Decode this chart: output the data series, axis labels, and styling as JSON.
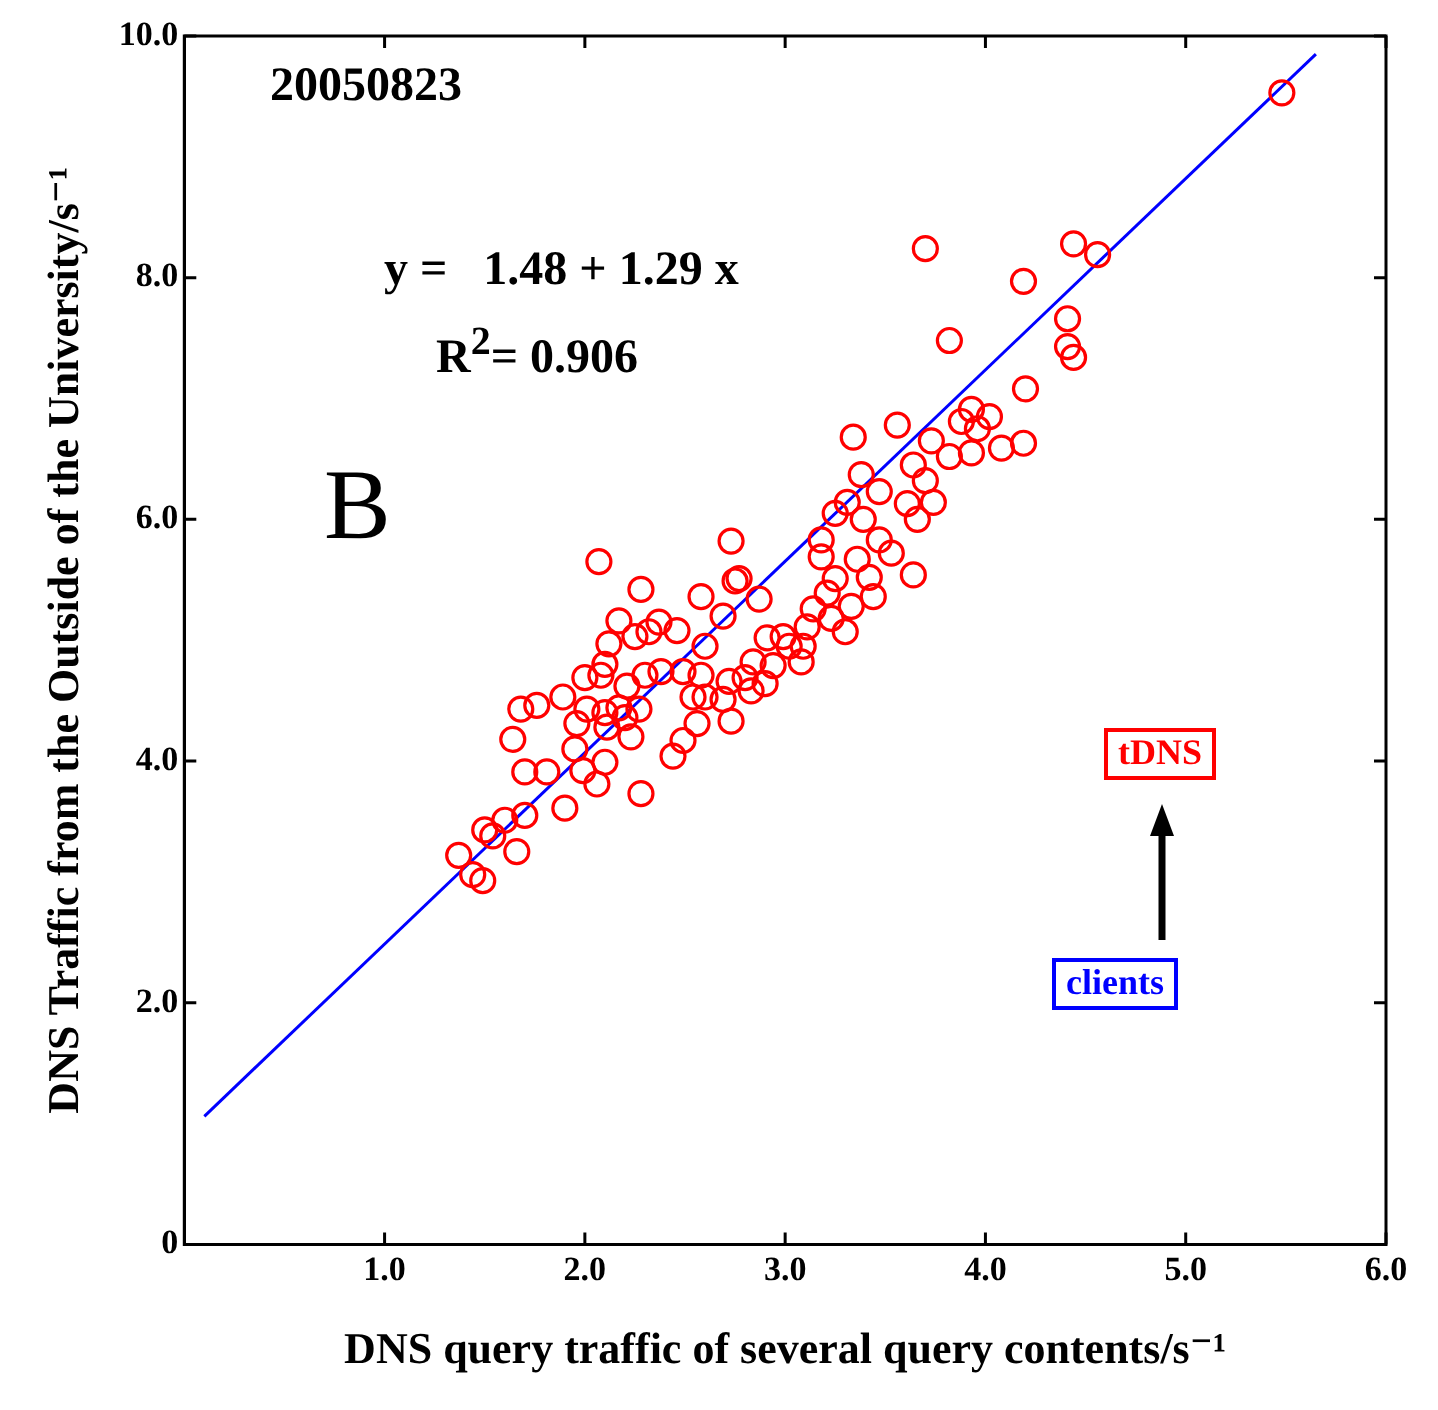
{
  "chart_data": {
    "type": "scatter",
    "xlabel": "DNS query traffic of several query contents/s⁻¹",
    "ylabel": "DNS Traffic from the Outside of the University/s⁻¹",
    "annotations": [
      "20050823",
      "y =   1.48 + 1.29 x",
      "R$^{2}$= 0.906",
      "B",
      "tDNS",
      "clients"
    ],
    "xlim": [
      0,
      6
    ],
    "ylim": [
      0,
      10
    ],
    "xticks": [
      {
        "value": 1,
        "label": "1.0"
      },
      {
        "value": 2,
        "label": "2.0"
      },
      {
        "value": 3,
        "label": "3.0"
      },
      {
        "value": 4,
        "label": "4.0"
      },
      {
        "value": 5,
        "label": "5.0"
      },
      {
        "value": 6,
        "label": "6.0"
      }
    ],
    "yticks": [
      0,
      {
        "value": 2,
        "label": "2.0"
      },
      {
        "value": 4,
        "label": "4.0"
      },
      {
        "value": 6,
        "label": "6.0"
      },
      {
        "value": 8,
        "label": "8.0"
      },
      {
        "value": 10,
        "label": "10.0"
      }
    ],
    "grid": false,
    "legend": false,
    "marker": "circle",
    "series": [
      {
        "color": "#ff0000",
        "x": [
          2.73,
          2.07,
          2.28,
          2.58,
          2.77,
          2.75,
          2.87,
          2.69,
          2.17,
          2.37,
          2.32,
          2.25,
          2.46,
          2.12,
          2.6,
          2.1,
          2.08,
          2.0,
          2.21,
          2.3,
          2.38,
          2.49,
          2.58,
          2.72,
          2.8,
          2.84,
          2.9,
          2.94,
          2.91,
          2.99,
          3.09,
          3.08,
          1.89,
          1.76,
          1.68,
          2.01,
          2.1,
          2.17,
          2.27,
          2.2,
          1.96,
          2.11,
          2.23,
          1.64,
          2.54,
          2.6,
          2.69,
          2.83,
          2.56,
          2.73,
          2.49,
          2.44,
          1.95,
          2.1,
          2.06,
          1.99,
          1.81,
          1.7,
          2.28,
          1.9,
          1.7,
          1.6,
          1.5,
          1.54,
          1.66,
          1.37,
          1.44,
          1.49,
          3.7,
          4.44,
          4.56,
          4.19,
          4.41,
          3.82,
          4.41,
          4.44,
          4.2,
          3.93,
          4.02,
          3.88,
          3.96,
          3.56,
          3.34,
          3.73,
          3.82,
          3.93,
          4.08,
          4.19,
          3.64,
          3.7,
          3.74,
          3.61,
          3.66,
          3.38,
          3.47,
          3.31,
          3.39,
          3.25,
          3.47,
          3.53,
          3.64,
          3.18,
          3.18,
          3.36,
          3.42,
          3.44,
          3.25,
          3.21,
          3.33,
          3.3,
          3.23,
          3.14,
          3.11,
          3.02,
          5.48
        ],
        "values": [
          5.82,
          5.65,
          5.42,
          5.36,
          5.51,
          5.49,
          5.34,
          5.2,
          5.16,
          5.15,
          5.07,
          5.03,
          5.08,
          4.97,
          4.95,
          4.8,
          4.71,
          4.69,
          4.62,
          4.71,
          4.74,
          4.74,
          4.71,
          4.66,
          4.69,
          4.82,
          4.64,
          4.79,
          5.02,
          5.03,
          4.95,
          4.82,
          4.53,
          4.46,
          4.43,
          4.43,
          4.4,
          4.44,
          4.43,
          4.36,
          4.31,
          4.28,
          4.2,
          4.18,
          4.53,
          4.53,
          4.51,
          4.58,
          4.31,
          4.33,
          4.17,
          4.04,
          4.1,
          3.99,
          3.81,
          3.92,
          3.91,
          3.91,
          3.73,
          3.61,
          3.55,
          3.51,
          3.43,
          3.38,
          3.25,
          3.22,
          3.06,
          3.01,
          8.24,
          8.28,
          8.19,
          7.97,
          7.66,
          7.48,
          7.43,
          7.34,
          7.08,
          6.91,
          6.85,
          6.81,
          6.75,
          6.78,
          6.68,
          6.65,
          6.52,
          6.55,
          6.59,
          6.63,
          6.45,
          6.32,
          6.14,
          6.13,
          6.0,
          6.37,
          6.23,
          6.14,
          6.0,
          6.05,
          5.83,
          5.72,
          5.54,
          5.83,
          5.69,
          5.67,
          5.52,
          5.36,
          5.51,
          5.39,
          5.28,
          5.07,
          5.18,
          5.26,
          5.11,
          4.95,
          9.53
        ]
      },
      {
        "type": "line",
        "color": "#0000ff",
        "marker": "none",
        "line_style": "solid",
        "x": [
          0.1,
          5.65
        ],
        "values": [
          1.06,
          9.85
        ]
      }
    ]
  }
}
